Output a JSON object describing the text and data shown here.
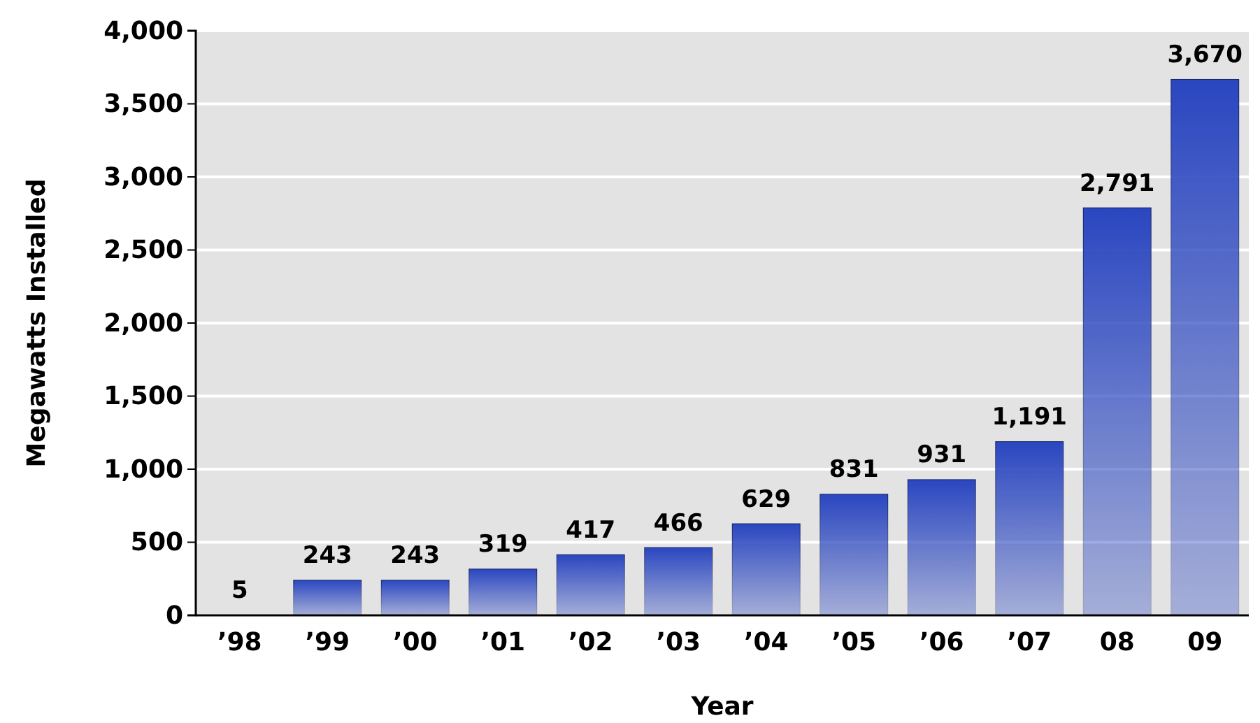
{
  "chart_data": {
    "type": "bar",
    "xlabel": "Year",
    "ylabel": "Megawatts Installed",
    "categories": [
      "’98",
      "’99",
      "’00",
      "’01",
      "’02",
      "’03",
      "’04",
      "’05",
      "’06",
      "’07",
      "08",
      "09"
    ],
    "values": [
      5,
      243,
      243,
      319,
      417,
      466,
      629,
      831,
      931,
      1191,
      2791,
      3670
    ],
    "color": "#2a46c0",
    "ylim": [
      0,
      4000
    ],
    "yticks": [
      {
        "value": 0,
        "label": "0"
      },
      {
        "value": 500,
        "label": "500"
      },
      {
        "value": 1000,
        "label": "1,000"
      },
      {
        "value": 1500,
        "label": "1,500"
      },
      {
        "value": 2000,
        "label": "2,000"
      },
      {
        "value": 2500,
        "label": "2,500"
      },
      {
        "value": 3000,
        "label": "3,000"
      },
      {
        "value": 3500,
        "label": "3,500"
      },
      {
        "value": 4000,
        "label": "4,000"
      }
    ],
    "grid": "y",
    "value_labels": [
      "5",
      "243",
      "243",
      "319",
      "417",
      "466",
      "629",
      "831",
      "931",
      "1,191",
      "2,791",
      "3,670"
    ]
  }
}
